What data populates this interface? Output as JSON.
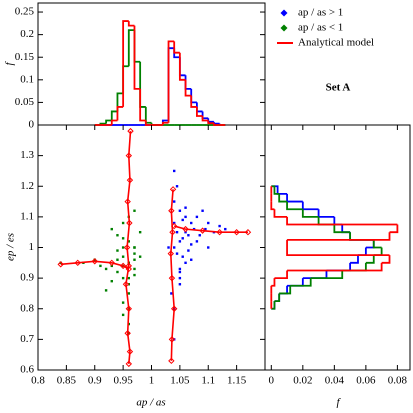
{
  "chart_data": [
    {
      "type": "histogram",
      "orientation": "vertical",
      "ylabel": "f",
      "bins": [
        0.9,
        0.91,
        0.92,
        0.93,
        0.94,
        0.95,
        0.96,
        0.97,
        0.98,
        0.99,
        1.0,
        1.01,
        1.02,
        1.03,
        1.04,
        1.05,
        1.06,
        1.07,
        1.08,
        1.09,
        1.1,
        1.11,
        1.12,
        1.13
      ],
      "series": [
        {
          "name": "ap / as > 1",
          "color": "#0000ff",
          "marker": "diamond",
          "values": [
            0,
            0,
            0,
            0,
            0,
            0,
            0,
            0,
            0,
            0,
            0,
            0,
            0.01,
            0.17,
            0.15,
            0.11,
            0.08,
            0.05,
            0.03,
            0.015,
            0.007,
            0.003,
            0
          ]
        },
        {
          "name": "ap / as < 1",
          "color": "#008000",
          "marker": "diamond",
          "values": [
            0,
            0.003,
            0.01,
            0.03,
            0.07,
            0.13,
            0.21,
            0.14,
            0.04,
            0.005,
            0,
            0,
            0,
            0,
            0,
            0,
            0,
            0,
            0,
            0,
            0,
            0,
            0
          ]
        },
        {
          "name": "Analytical model",
          "color": "#ff0000",
          "marker": "line",
          "values": [
            0,
            0,
            0,
            0.01,
            0.04,
            0.23,
            0.22,
            0.08,
            0.01,
            0,
            0,
            0,
            0.005,
            0.185,
            0.16,
            0.1,
            0.065,
            0.04,
            0.02,
            0.01,
            0.004,
            0,
            0
          ]
        }
      ],
      "xlim": [
        0.8,
        1.2
      ],
      "ylim": [
        0,
        0.27
      ],
      "yticks": [
        0,
        0.05,
        0.1,
        0.15,
        0.2,
        0.25
      ],
      "annotation": "Set A"
    },
    {
      "type": "scatter",
      "xlabel": "ap / as",
      "ylabel": "ep / es",
      "xlim": [
        0.8,
        1.2
      ],
      "ylim": [
        0.6,
        1.4
      ],
      "xticks": [
        0.8,
        0.85,
        0.9,
        0.95,
        1,
        1.05,
        1.1,
        1.15
      ],
      "yticks": [
        0.6,
        0.7,
        0.8,
        0.9,
        1,
        1.1,
        1.2,
        1.3
      ],
      "series": [
        {
          "color": "#0000ff",
          "x": [
            1.04,
            1.05,
            1.06,
            1.045,
            1.07,
            1.08,
            1.055,
            1.065,
            1.09,
            1.1,
            1.04,
            1.05,
            1.06,
            1.075,
            1.085,
            1.035,
            1.045,
            1.05,
            1.06,
            1.07,
            1.11,
            1.12,
            1.04,
            1.05,
            1.055,
            1.065,
            1.08,
            1.095,
            1.04,
            1.05,
            1.03,
            1.04,
            1.06,
            1.07,
            1.045,
            1.055,
            1.13,
            1.1,
            1.05,
            1.04
          ],
          "values": [
            1.0,
            1.02,
            1.05,
            0.98,
            1.08,
            1.1,
            1.03,
            0.99,
            1.12,
            1.08,
            1.15,
            0.9,
            0.95,
            1.06,
            1.04,
            0.85,
            1.2,
            0.93,
            1.1,
            1.01,
            1.05,
            1.07,
            0.8,
            1.12,
            0.97,
            1.04,
            1.02,
            1.06,
            1.08,
            0.88,
            1.0,
            1.25,
            1.13,
            0.96,
            1.05,
            1.09,
            1.06,
            1.0,
            0.92,
            0.7
          ]
        },
        {
          "color": "#008000",
          "x": [
            0.96,
            0.95,
            0.97,
            0.94,
            0.96,
            0.93,
            0.97,
            0.95,
            0.98,
            0.92,
            0.96,
            0.95,
            0.94,
            0.97,
            0.96,
            0.93,
            0.95,
            0.96,
            0.98,
            0.91,
            0.9,
            0.96,
            0.95,
            0.94,
            0.97,
            0.96,
            0.95,
            0.92,
            0.97,
            0.96,
            0.88,
            0.95,
            0.94,
            0.96,
            0.97,
            0.93,
            0.96,
            0.95,
            0.84,
            0.97
          ],
          "values": [
            0.95,
            0.97,
            1.0,
            0.92,
            1.02,
            0.94,
            0.98,
            0.9,
            1.05,
            0.93,
            0.88,
            1.03,
            0.96,
            0.93,
            0.85,
            0.89,
            1.08,
            0.8,
            0.97,
            0.94,
            0.96,
            1.1,
            0.82,
            0.99,
            0.91,
            0.75,
            1.0,
            0.86,
            1.12,
            0.95,
            0.95,
            0.78,
            1.04,
            0.72,
            0.96,
            1.06,
            0.9,
            0.94,
            0.95,
            1.0
          ]
        }
      ],
      "model_curves": [
        {
          "color": "#ff0000",
          "x": [
            0.963,
            0.96,
            0.962,
            0.958,
            0.961,
            0.957,
            0.96,
            0.955,
            0.96,
            0.958,
            0.962,
            0.96
          ],
          "values": [
            1.38,
            1.3,
            1.22,
            1.15,
            1.08,
            1.0,
            0.94,
            0.88,
            0.8,
            0.72,
            0.66,
            0.62
          ]
        },
        {
          "color": "#ff0000",
          "x": [
            0.84,
            0.87,
            0.9,
            0.93,
            0.95,
            0.96
          ],
          "values": [
            0.945,
            0.95,
            0.955,
            0.95,
            0.94,
            0.93
          ]
        },
        {
          "color": "#ff0000",
          "x": [
            1.038,
            1.035,
            1.037,
            1.034,
            1.036,
            1.04,
            1.036,
            1.035
          ],
          "values": [
            1.19,
            1.12,
            1.05,
            0.98,
            0.9,
            0.8,
            0.7,
            0.63
          ]
        },
        {
          "color": "#ff0000",
          "x": [
            1.04,
            1.06,
            1.09,
            1.12,
            1.15,
            1.17
          ],
          "values": [
            1.07,
            1.06,
            1.055,
            1.05,
            1.05,
            1.05
          ]
        }
      ]
    },
    {
      "type": "histogram",
      "orientation": "horizontal",
      "xlabel": "f",
      "bins": [
        0.8,
        0.825,
        0.85,
        0.875,
        0.9,
        0.925,
        0.95,
        0.975,
        1,
        1.025,
        1.05,
        1.075,
        1.1,
        1.125,
        1.15,
        1.175,
        1.2
      ],
      "series": [
        {
          "color": "#0000ff",
          "values": [
            0.002,
            0.005,
            0.01,
            0.02,
            0.035,
            0.05,
            0.055,
            0.06,
            0.065,
            0.05,
            0.045,
            0.04,
            0.03,
            0.02,
            0.01,
            0.004
          ]
        },
        {
          "color": "#008000",
          "values": [
            0.002,
            0.005,
            0.012,
            0.025,
            0.045,
            0.06,
            0.065,
            0.07,
            0.065,
            0.05,
            0.04,
            0.03,
            0.02,
            0.01,
            0.005,
            0.002
          ]
        },
        {
          "color": "#ff0000",
          "values": [
            0,
            0,
            0,
            0.002,
            0.01,
            0.07,
            0.075,
            0.01,
            0.01,
            0.075,
            0.08,
            0.01,
            0.002,
            0,
            0,
            0
          ]
        }
      ],
      "xlim": [
        -0.004,
        0.088
      ],
      "ylim": [
        0.6,
        1.4
      ],
      "xticks": [
        0,
        0.02,
        0.04,
        0.06,
        0.08
      ]
    }
  ]
}
